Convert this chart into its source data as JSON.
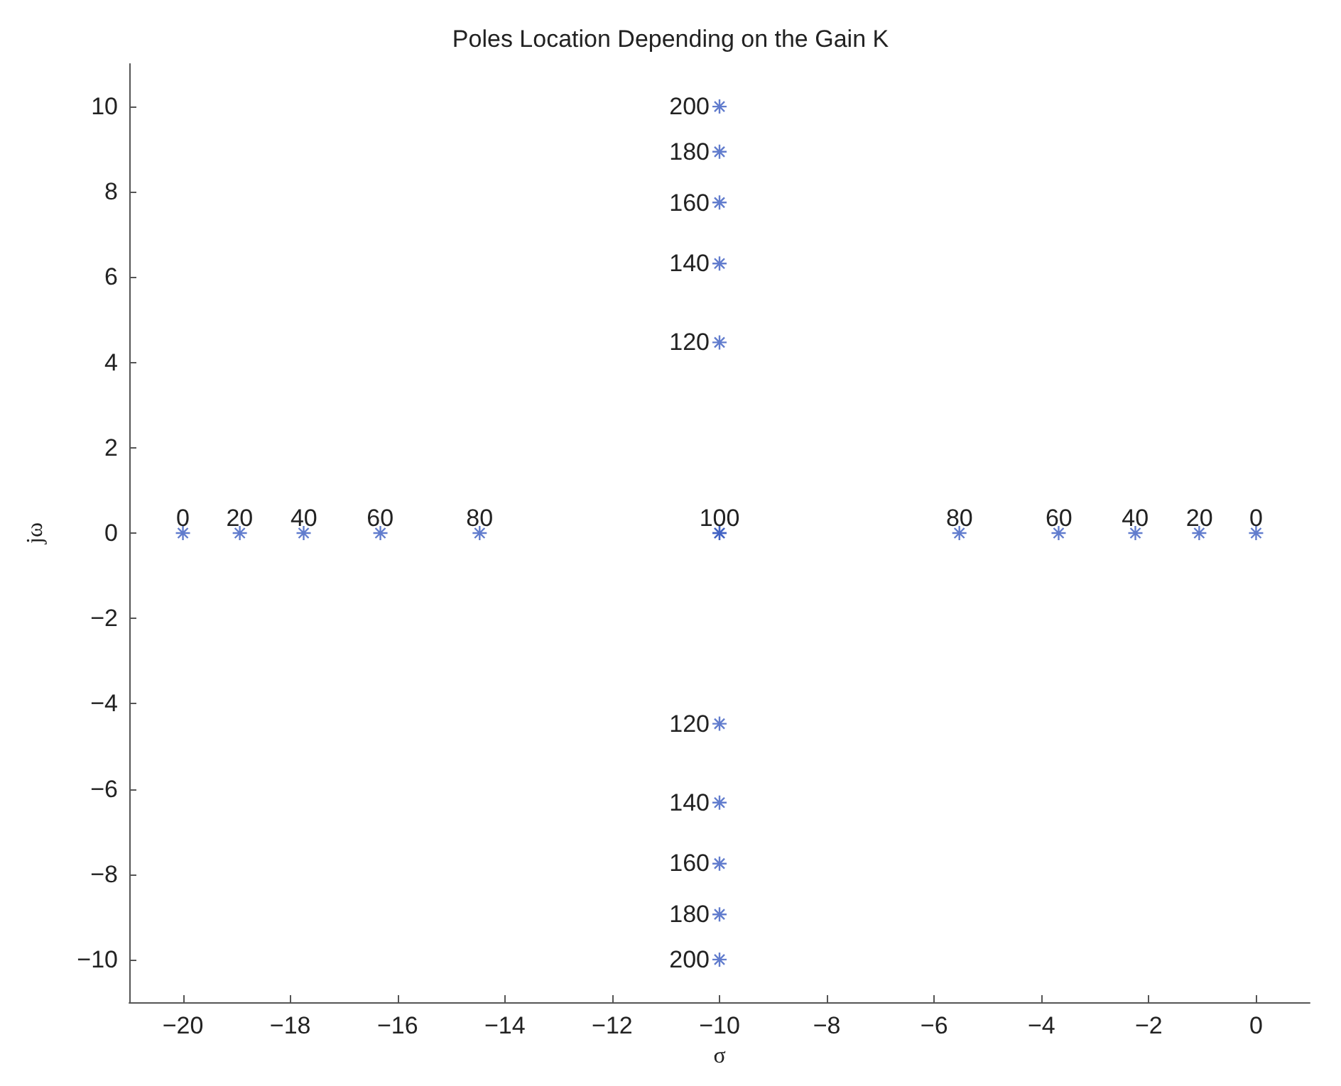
{
  "chart_data": {
    "type": "scatter",
    "title": "Poles Location Depending on the Gain K",
    "xlabel": "σ",
    "ylabel": "jω",
    "x": [
      -20,
      -18.94,
      -17.75,
      -16.32,
      -14.47,
      -10,
      -10,
      -10,
      -10,
      -10,
      -10,
      -10,
      -10,
      -10,
      -10,
      -10,
      -10,
      -5.53,
      -3.68,
      -2.25,
      -1.06,
      0
    ],
    "series": [
      {
        "color": "#3a5bc0",
        "values": [
          0,
          0,
          0,
          0,
          0,
          0,
          0,
          4.47,
          6.32,
          7.75,
          8.94,
          10,
          -4.47,
          -6.32,
          -7.75,
          -8.94,
          -10,
          0,
          0,
          0,
          0,
          0
        ]
      }
    ],
    "annotations": [
      {
        "text": "0",
        "x": -20,
        "y": 0
      },
      {
        "text": "20",
        "x": -18.944,
        "y": 0
      },
      {
        "text": "40",
        "x": -17.746,
        "y": 0
      },
      {
        "text": "60",
        "x": -16.325,
        "y": 0
      },
      {
        "text": "80",
        "x": -14.472,
        "y": 0
      },
      {
        "text": "100",
        "x": -10,
        "y": 0
      },
      {
        "text": "120",
        "x": -10,
        "y": 4.472
      },
      {
        "text": "140",
        "x": -10,
        "y": 6.325
      },
      {
        "text": "160",
        "x": -10,
        "y": 7.746
      },
      {
        "text": "180",
        "x": -10,
        "y": 8.944
      },
      {
        "text": "200",
        "x": -10,
        "y": 10
      },
      {
        "text": "120",
        "x": -10,
        "y": -4.472
      },
      {
        "text": "140",
        "x": -10,
        "y": -6.325
      },
      {
        "text": "160",
        "x": -10,
        "y": -7.746
      },
      {
        "text": "180",
        "x": -10,
        "y": -8.944
      },
      {
        "text": "200",
        "x": -10,
        "y": -10
      },
      {
        "text": "80",
        "x": -5.528,
        "y": 0
      },
      {
        "text": "60",
        "x": -3.675,
        "y": 0
      },
      {
        "text": "40",
        "x": -2.254,
        "y": 0
      },
      {
        "text": "20",
        "x": -1.056,
        "y": 0
      },
      {
        "text": "0",
        "x": 0,
        "y": 0
      }
    ],
    "xlim": [
      -21,
      1
    ],
    "xticks": [
      -20,
      -18,
      -16,
      -14,
      -12,
      -10,
      -8,
      -6,
      -4,
      -2,
      0
    ],
    "ylim": [
      -11,
      11
    ],
    "yticks": [
      -10,
      -8,
      -6,
      -4,
      -2,
      0,
      2,
      4,
      6,
      8,
      10
    ],
    "marker": "cross",
    "grid": false
  }
}
